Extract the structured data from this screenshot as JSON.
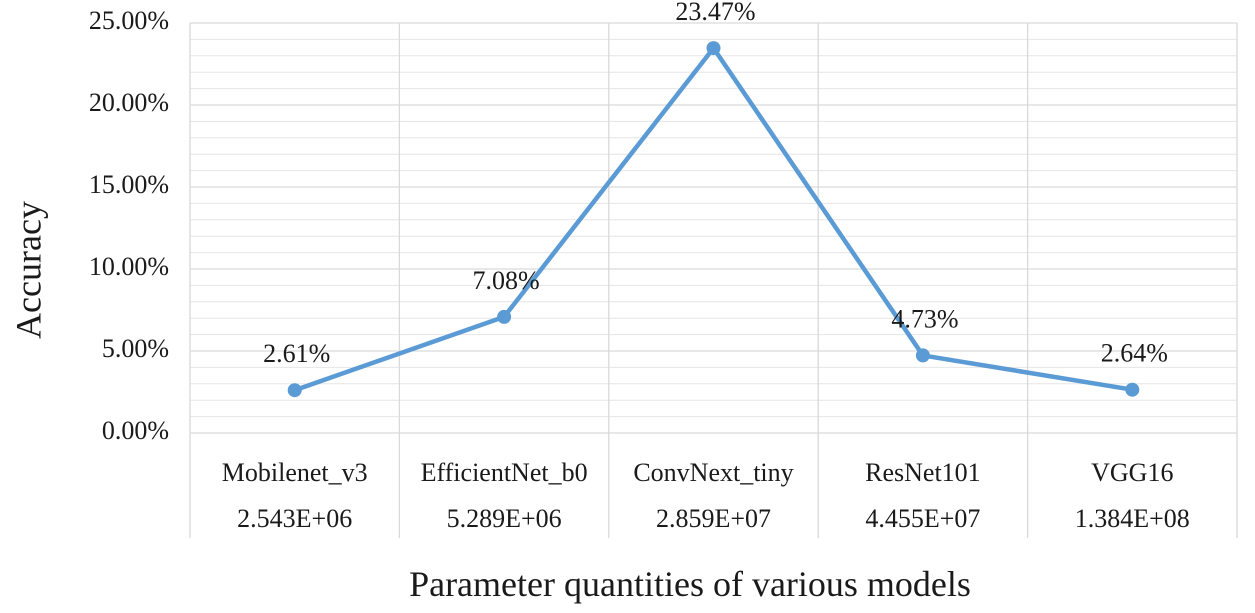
{
  "chart_data": {
    "type": "line",
    "title": "",
    "xlabel": "Parameter quantities of various models",
    "ylabel": "Accuracy",
    "categories": [
      "Mobilenet_v3",
      "EfficientNet_b0",
      "ConvNext_tiny",
      "ResNet101",
      "VGG16"
    ],
    "parameter_counts": [
      "2.543E+06",
      "5.289E+06",
      "2.859E+07",
      "4.455E+07",
      "1.384E+08"
    ],
    "series": [
      {
        "values": [
          2.61,
          7.08,
          23.47,
          4.73,
          2.64
        ],
        "labels": [
          "2.61%",
          "7.08%",
          "23.47%",
          "4.73%",
          "2.64%"
        ],
        "color": "#5B9BD5"
      }
    ],
    "yticks": [
      "0.00%",
      "5.00%",
      "10.00%",
      "15.00%",
      "20.00%",
      "25.00%"
    ],
    "ylim": [
      0,
      25
    ],
    "grid": true,
    "colors": {
      "line": "#5B9BD5",
      "grid": "#d9d9d9",
      "text": "#1a1a1a"
    }
  }
}
